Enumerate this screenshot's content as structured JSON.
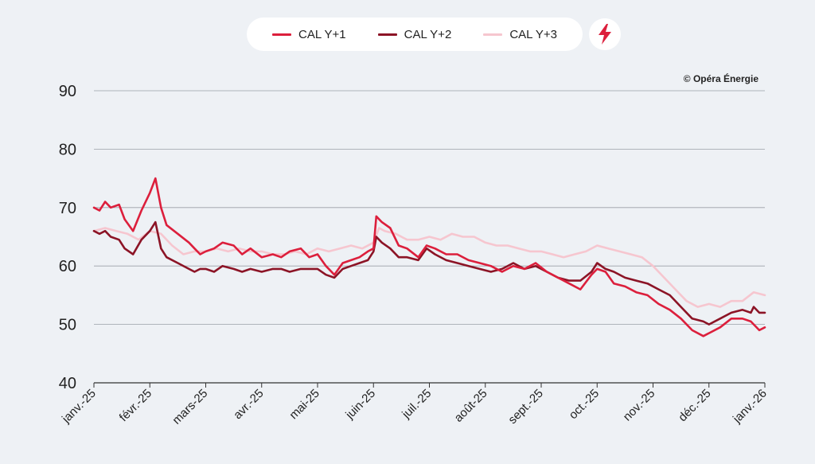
{
  "legend": {
    "series1": "CAL Y+1",
    "series2": "CAL Y+2",
    "series3": "CAL Y+3"
  },
  "icons": {
    "badge": "lightning-bolt-icon"
  },
  "colors": {
    "background": "#eef1f5",
    "series1": "#dc1f3c",
    "series2": "#8c1426",
    "series3": "#f6c6cf",
    "grid": "#9aa0a8"
  },
  "chart_data": {
    "type": "line",
    "title": "",
    "source": "© Opéra Énergie",
    "xlabel": "",
    "ylabel": "",
    "ylim": [
      40,
      90
    ],
    "yticks": [
      40,
      50,
      60,
      70,
      80,
      90
    ],
    "xlim": [
      0,
      12
    ],
    "x_tick_labels": [
      "janv.-25",
      "févr.-25",
      "mars-25",
      "avr.-25",
      "mai-25",
      "juin-25",
      "juil.-25",
      "août-25",
      "sept.-25",
      "oct.-25",
      "nov.-25",
      "déc.-25",
      "janv.-26"
    ],
    "series": [
      {
        "name": "CAL Y+1",
        "x": [
          0,
          0.1,
          0.2,
          0.3,
          0.45,
          0.55,
          0.7,
          0.85,
          1.0,
          1.1,
          1.2,
          1.3,
          1.5,
          1.7,
          1.8,
          1.9,
          2.0,
          2.15,
          2.3,
          2.5,
          2.65,
          2.8,
          3.0,
          3.2,
          3.35,
          3.5,
          3.7,
          3.85,
          4.0,
          4.15,
          4.3,
          4.45,
          4.6,
          4.75,
          4.9,
          5.0,
          5.05,
          5.15,
          5.3,
          5.45,
          5.6,
          5.8,
          5.95,
          6.1,
          6.3,
          6.5,
          6.7,
          6.9,
          7.1,
          7.3,
          7.5,
          7.7,
          7.9,
          8.1,
          8.3,
          8.5,
          8.7,
          8.9,
          9.0,
          9.15,
          9.3,
          9.5,
          9.7,
          9.9,
          10.1,
          10.3,
          10.5,
          10.7,
          10.9,
          11.0,
          11.2,
          11.4,
          11.6,
          11.75,
          11.8,
          11.9,
          12.0
        ],
        "values": [
          70,
          69.5,
          71,
          70,
          70.5,
          68,
          66,
          69.5,
          72.5,
          75,
          70,
          67,
          65.5,
          64,
          63,
          62,
          62.5,
          63,
          64,
          63.5,
          62,
          63,
          61.5,
          62,
          61.5,
          62.5,
          63,
          61.5,
          62,
          60,
          58.5,
          60.5,
          61,
          61.5,
          62.5,
          63,
          68.5,
          67.5,
          66.5,
          63.5,
          63,
          61.5,
          63.5,
          63,
          62,
          62,
          61,
          60.5,
          60,
          59,
          60,
          59.5,
          60.5,
          59,
          58,
          57,
          56,
          58.5,
          59.5,
          59,
          57,
          56.5,
          55.5,
          55,
          53.5,
          52.5,
          51,
          49,
          48,
          48.5,
          49.5,
          51,
          51,
          50.5,
          50,
          49,
          49.5
        ]
      },
      {
        "name": "CAL Y+2",
        "x": [
          0,
          0.1,
          0.2,
          0.3,
          0.45,
          0.55,
          0.7,
          0.85,
          1.0,
          1.1,
          1.2,
          1.3,
          1.5,
          1.7,
          1.8,
          1.9,
          2.0,
          2.15,
          2.3,
          2.5,
          2.65,
          2.8,
          3.0,
          3.2,
          3.35,
          3.5,
          3.7,
          3.85,
          4.0,
          4.15,
          4.3,
          4.45,
          4.6,
          4.75,
          4.9,
          5.0,
          5.05,
          5.15,
          5.3,
          5.45,
          5.6,
          5.8,
          5.95,
          6.1,
          6.3,
          6.5,
          6.7,
          6.9,
          7.1,
          7.3,
          7.5,
          7.7,
          7.9,
          8.1,
          8.3,
          8.5,
          8.7,
          8.9,
          9.0,
          9.15,
          9.3,
          9.5,
          9.7,
          9.9,
          10.1,
          10.3,
          10.5,
          10.7,
          10.9,
          11.0,
          11.2,
          11.4,
          11.6,
          11.75,
          11.8,
          11.9,
          12.0
        ],
        "values": [
          66,
          65.5,
          66,
          65,
          64.5,
          63,
          62,
          64.5,
          66,
          67.5,
          63,
          61.5,
          60.5,
          59.5,
          59,
          59.5,
          59.5,
          59,
          60,
          59.5,
          59,
          59.5,
          59,
          59.5,
          59.5,
          59,
          59.5,
          59.5,
          59.5,
          58.5,
          58,
          59.5,
          60,
          60.5,
          61,
          62.5,
          65,
          64,
          63,
          61.5,
          61.5,
          61,
          63,
          62,
          61,
          60.5,
          60,
          59.5,
          59,
          59.5,
          60.5,
          59.5,
          60,
          59,
          58,
          57.5,
          57.5,
          59,
          60.5,
          59.5,
          59,
          58,
          57.5,
          57,
          56,
          55,
          53,
          51,
          50.5,
          50,
          51,
          52,
          52.5,
          52,
          53,
          52,
          52
        ]
      },
      {
        "name": "CAL Y+3",
        "x": [
          0,
          0.2,
          0.4,
          0.6,
          0.8,
          1.0,
          1.2,
          1.4,
          1.6,
          1.8,
          2.0,
          2.2,
          2.4,
          2.6,
          2.8,
          3.0,
          3.2,
          3.4,
          3.6,
          3.8,
          4.0,
          4.2,
          4.4,
          4.6,
          4.8,
          5.0,
          5.1,
          5.2,
          5.4,
          5.6,
          5.8,
          6.0,
          6.2,
          6.4,
          6.6,
          6.8,
          7.0,
          7.2,
          7.4,
          7.6,
          7.8,
          8.0,
          8.2,
          8.4,
          8.6,
          8.8,
          9.0,
          9.2,
          9.4,
          9.6,
          9.8,
          10.0,
          10.2,
          10.4,
          10.6,
          10.8,
          11.0,
          11.2,
          11.4,
          11.6,
          11.8,
          12.0
        ],
        "values": [
          66,
          66.5,
          66,
          65.5,
          64.5,
          66,
          65.5,
          63.5,
          62,
          62.5,
          62.5,
          63,
          62.5,
          63,
          62.5,
          62.5,
          62,
          62,
          62.5,
          62,
          63,
          62.5,
          63,
          63.5,
          63,
          64,
          66.5,
          66,
          65.5,
          64.5,
          64.5,
          65,
          64.5,
          65.5,
          65,
          65,
          64,
          63.5,
          63.5,
          63,
          62.5,
          62.5,
          62,
          61.5,
          62,
          62.5,
          63.5,
          63,
          62.5,
          62,
          61.5,
          60,
          58,
          56,
          54,
          53,
          53.5,
          53,
          54,
          54,
          55.5,
          55
        ]
      }
    ]
  }
}
